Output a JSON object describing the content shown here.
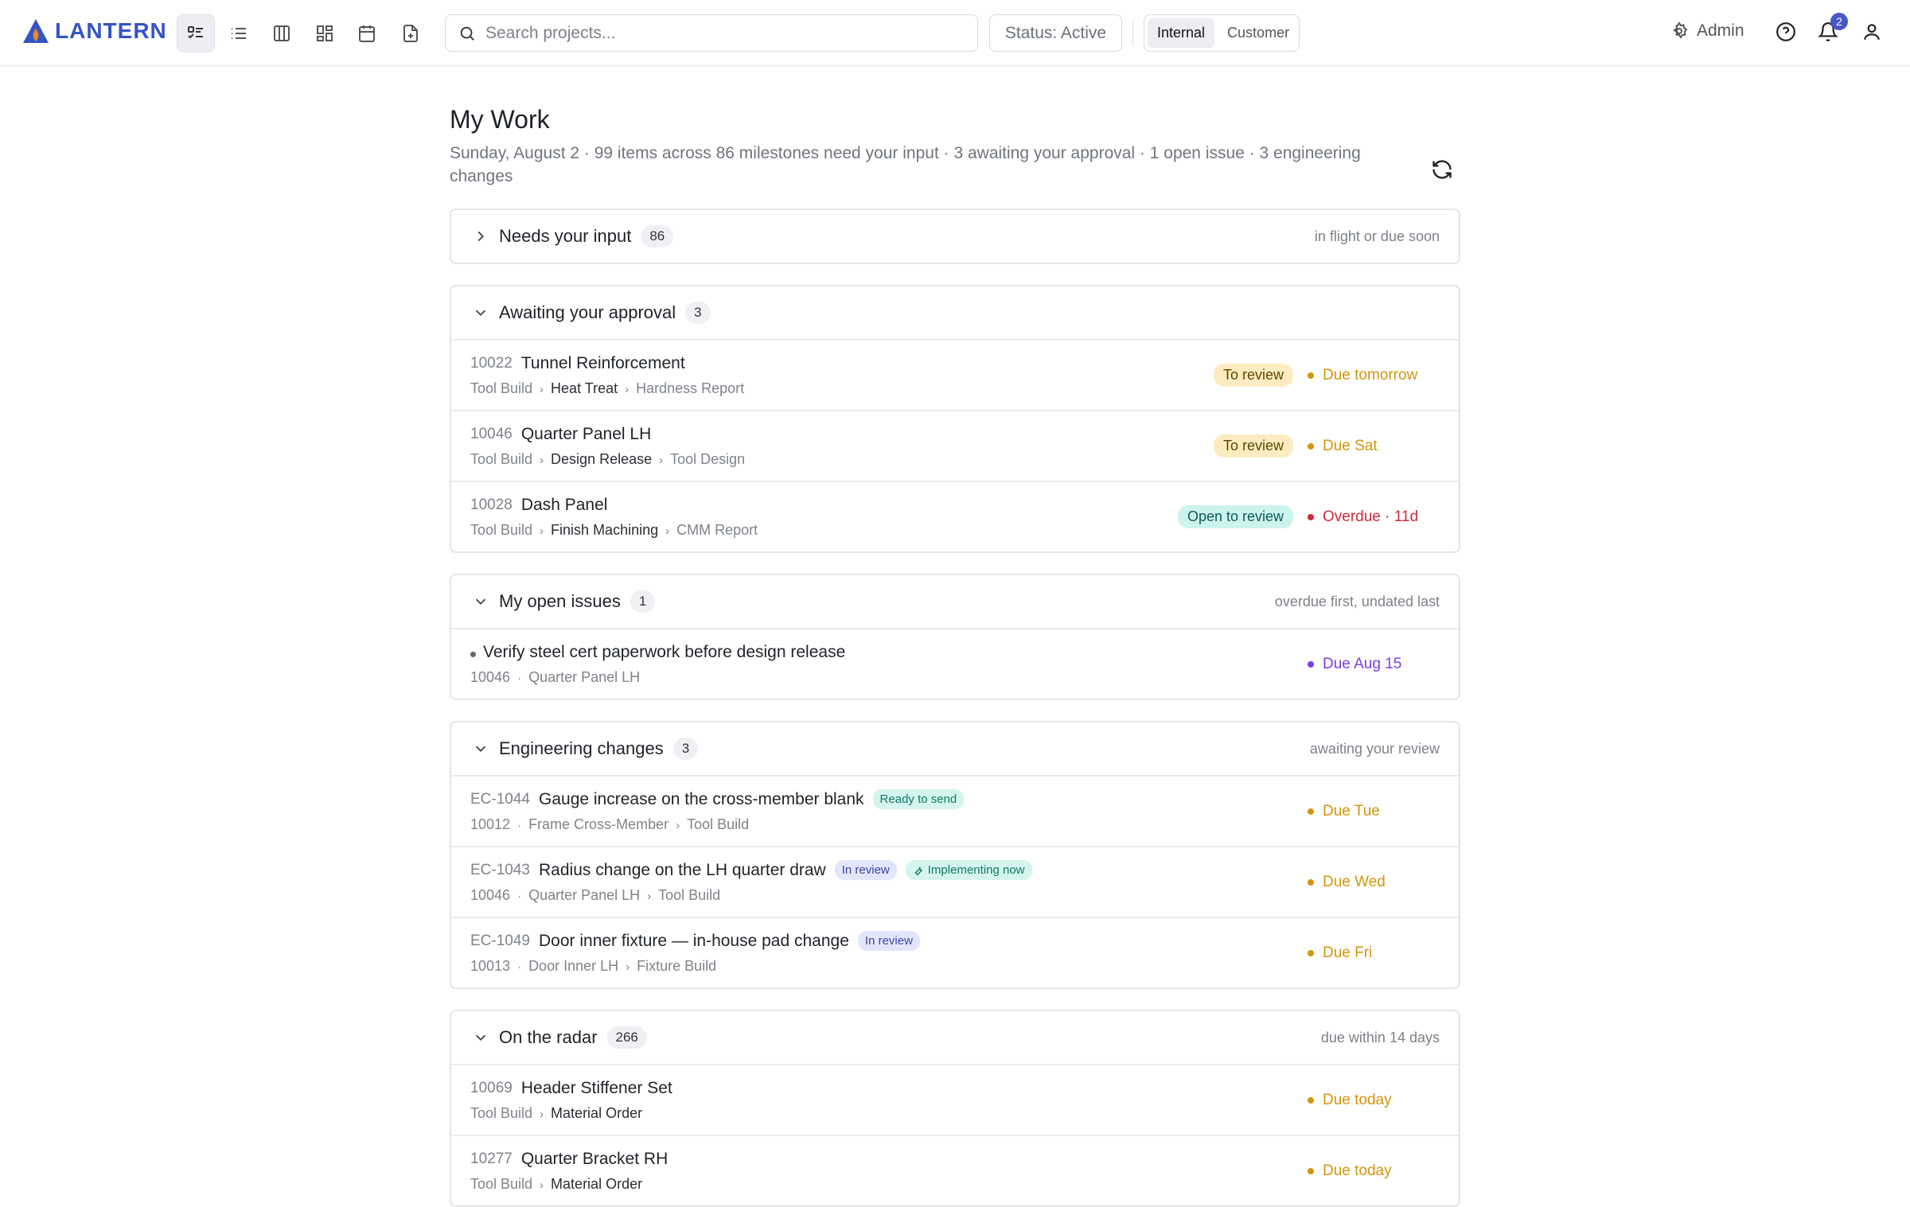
{
  "header": {
    "logo": "LANTERN",
    "search_placeholder": "Search projects...",
    "status_filter": "Status: Active",
    "toggle": [
      "Internal",
      "Customer"
    ],
    "admin": "Admin",
    "notifications": "2"
  },
  "page": {
    "title": "My Work",
    "subtitle": "Sunday, August 2 · 99 items across 86 milestones need your input · 3 awaiting your approval · 1 open issue · 3 engineering changes"
  },
  "sections": [
    {
      "title": "Needs your input",
      "count": "86",
      "note": "in flight or due soon",
      "expanded": false,
      "items": []
    },
    {
      "title": "Awaiting your approval",
      "count": "3",
      "expanded": true,
      "items": [
        {
          "code": "10022",
          "name": "Tunnel Reinforcement",
          "crumbs": [
            "Tool Build",
            "Heat Treat",
            "Hardness Report"
          ],
          "status": {
            "label": "To review",
            "bg": "#fcecc0",
            "color": "#5e4600"
          },
          "due": "Due tomorrow",
          "due_color": "#d4940c"
        },
        {
          "code": "10046",
          "name": "Quarter Panel LH",
          "crumbs": [
            "Tool Build",
            "Design Release",
            "Tool Design"
          ],
          "status": {
            "label": "To review",
            "bg": "#fcecc0",
            "color": "#5e4600"
          },
          "due": "Due Sat",
          "due_color": "#d4940c"
        },
        {
          "code": "10028",
          "name": "Dash Panel",
          "crumbs": [
            "Tool Build",
            "Finish Machining",
            "CMM Report"
          ],
          "status": {
            "label": "Open to review",
            "bg": "#cdf3ee",
            "color": "#0e5c55"
          },
          "due": "Overdue · 11d",
          "due_color": "#d12a3a"
        }
      ]
    },
    {
      "title": "My open issues",
      "count": "1",
      "note": "overdue first, undated last",
      "expanded": true,
      "items": [
        {
          "name": "Verify steel cert paperwork before design release",
          "ref": [
            "10046",
            "Quarter Panel LH"
          ],
          "due": "Due Aug 15",
          "due_color": "#7b3fe0"
        }
      ]
    },
    {
      "title": "Engineering changes",
      "count": "3",
      "note": "awaiting your review",
      "expanded": true,
      "items": [
        {
          "code": "EC-1044",
          "name": "Gauge increase on the cross-member blank",
          "tags": [
            {
              "label": "Ready to send",
              "bg": "#d5f4ee",
              "color": "#0f7a66"
            }
          ],
          "ref": [
            "10012",
            "Frame Cross-Member",
            "Tool Build"
          ],
          "due": "Due Tue",
          "due_color": "#d4940c"
        },
        {
          "code": "EC-1043",
          "name": "Radius change on the LH quarter draw",
          "tags": [
            {
              "label": "In review",
              "bg": "#e3e6fb",
              "color": "#3a45a6"
            },
            {
              "label": "Implementing now",
              "bg": "#d5f4ee",
              "color": "#0f7a66",
              "icon": true
            }
          ],
          "ref": [
            "10046",
            "Quarter Panel LH",
            "Tool Build"
          ],
          "due": "Due Wed",
          "due_color": "#d4940c"
        },
        {
          "code": "EC-1049",
          "name": "Door inner fixture — in-house pad change",
          "tags": [
            {
              "label": "In review",
              "bg": "#e3e6fb",
              "color": "#3a45a6"
            }
          ],
          "ref": [
            "10013",
            "Door Inner LH",
            "Fixture Build"
          ],
          "due": "Due Fri",
          "due_color": "#d4940c"
        }
      ]
    },
    {
      "title": "On the radar",
      "count": "266",
      "note": "due within 14 days",
      "expanded": true,
      "items": [
        {
          "code": "10069",
          "name": "Header Stiffener Set",
          "crumbs": [
            "Tool Build",
            "Material Order"
          ],
          "due": "Due today",
          "due_color": "#d4940c"
        },
        {
          "code": "10277",
          "name": "Quarter Bracket RH",
          "crumbs": [
            "Tool Build",
            "Material Order"
          ],
          "due": "Due today",
          "due_color": "#d4940c"
        }
      ]
    }
  ]
}
